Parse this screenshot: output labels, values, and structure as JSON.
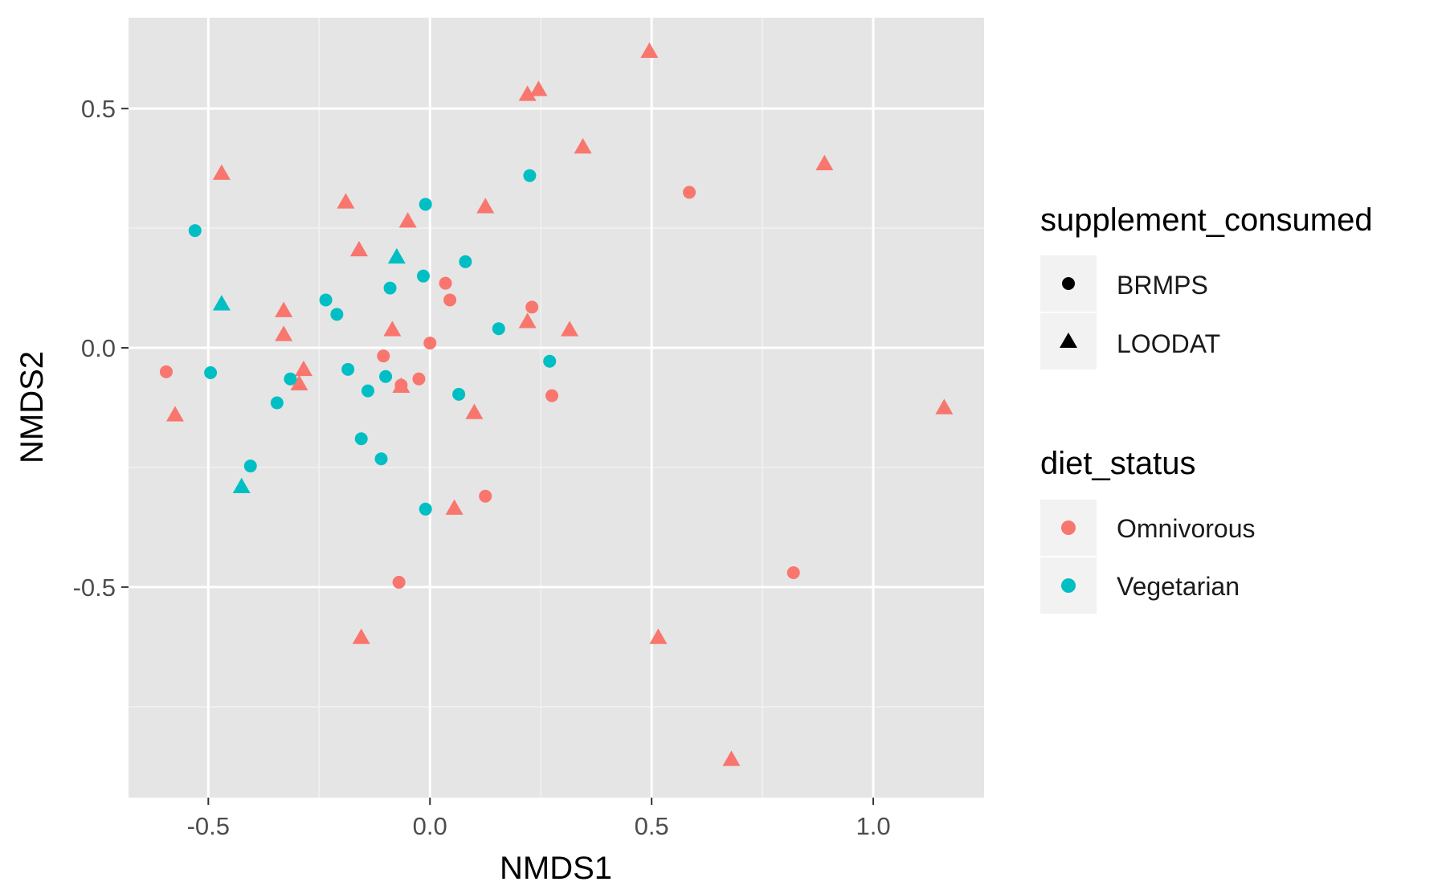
{
  "chart_data": {
    "type": "scatter",
    "xlabel": "NMDS1",
    "ylabel": "NMDS2",
    "xlim": [
      -0.68,
      1.25
    ],
    "ylim": [
      -0.94,
      0.69
    ],
    "xticks": [
      -0.5,
      0.0,
      0.5,
      1.0
    ],
    "xtick_labels": [
      "-0.5",
      "0.0",
      "0.5",
      "1.0"
    ],
    "yticks": [
      -0.5,
      0.0,
      0.5
    ],
    "ytick_labels": [
      "-0.5",
      "0.0",
      "0.5"
    ],
    "grid": true,
    "panel_color": "#e5e5e5",
    "legends": [
      {
        "title": "supplement_consumed",
        "type": "shape",
        "items": [
          {
            "label": "BRMPS",
            "shape": "circle"
          },
          {
            "label": "LOODAT",
            "shape": "triangle"
          }
        ]
      },
      {
        "title": "diet_status",
        "type": "color",
        "items": [
          {
            "label": "Omnivorous",
            "color": "#f8766d"
          },
          {
            "label": "Vegetarian",
            "color": "#00bfc4"
          }
        ]
      }
    ],
    "series": [
      {
        "diet": "Omnivorous",
        "supplement": "BRMPS",
        "color": "#f8766d",
        "shape": "circle",
        "points": [
          [
            0.585,
            0.325
          ],
          [
            0.035,
            0.135
          ],
          [
            0.045,
            0.1
          ],
          [
            0.23,
            0.085
          ],
          [
            0.0,
            0.01
          ],
          [
            -0.105,
            -0.017
          ],
          [
            -0.025,
            -0.065
          ],
          [
            -0.065,
            -0.078
          ],
          [
            0.275,
            -0.1
          ],
          [
            -0.595,
            -0.05
          ],
          [
            0.125,
            -0.31
          ],
          [
            -0.07,
            -0.49
          ],
          [
            0.82,
            -0.47
          ]
        ]
      },
      {
        "diet": "Omnivorous",
        "supplement": "LOODAT",
        "color": "#f8766d",
        "shape": "triangle",
        "points": [
          [
            0.495,
            0.62
          ],
          [
            0.22,
            0.53
          ],
          [
            0.245,
            0.54
          ],
          [
            0.345,
            0.42
          ],
          [
            -0.47,
            0.365
          ],
          [
            0.89,
            0.385
          ],
          [
            -0.19,
            0.305
          ],
          [
            0.125,
            0.295
          ],
          [
            -0.05,
            0.265
          ],
          [
            -0.16,
            0.205
          ],
          [
            -0.33,
            0.078
          ],
          [
            -0.33,
            0.028
          ],
          [
            -0.085,
            0.038
          ],
          [
            0.22,
            0.055
          ],
          [
            0.315,
            0.038
          ],
          [
            -0.285,
            -0.045
          ],
          [
            -0.295,
            -0.075
          ],
          [
            -0.065,
            -0.08
          ],
          [
            -0.575,
            -0.14
          ],
          [
            0.1,
            -0.135
          ],
          [
            1.16,
            -0.125
          ],
          [
            0.055,
            -0.335
          ],
          [
            -0.155,
            -0.605
          ],
          [
            0.515,
            -0.605
          ],
          [
            0.68,
            -0.86
          ]
        ]
      },
      {
        "diet": "Vegetarian",
        "supplement": "BRMPS",
        "color": "#00bfc4",
        "shape": "circle",
        "points": [
          [
            0.225,
            0.36
          ],
          [
            -0.01,
            0.3
          ],
          [
            -0.53,
            0.245
          ],
          [
            0.08,
            0.18
          ],
          [
            -0.015,
            0.15
          ],
          [
            -0.09,
            0.125
          ],
          [
            -0.235,
            0.1
          ],
          [
            -0.21,
            0.07
          ],
          [
            0.155,
            0.04
          ],
          [
            0.27,
            -0.028
          ],
          [
            -0.185,
            -0.045
          ],
          [
            -0.1,
            -0.06
          ],
          [
            -0.315,
            -0.065
          ],
          [
            -0.495,
            -0.052
          ],
          [
            -0.14,
            -0.09
          ],
          [
            0.065,
            -0.097
          ],
          [
            -0.345,
            -0.115
          ],
          [
            -0.155,
            -0.19
          ],
          [
            -0.11,
            -0.232
          ],
          [
            -0.405,
            -0.247
          ],
          [
            -0.01,
            -0.337
          ]
        ]
      },
      {
        "diet": "Vegetarian",
        "supplement": "LOODAT",
        "color": "#00bfc4",
        "shape": "triangle",
        "points": [
          [
            -0.075,
            0.19
          ],
          [
            -0.47,
            0.092
          ],
          [
            -0.425,
            -0.29
          ]
        ]
      }
    ]
  }
}
